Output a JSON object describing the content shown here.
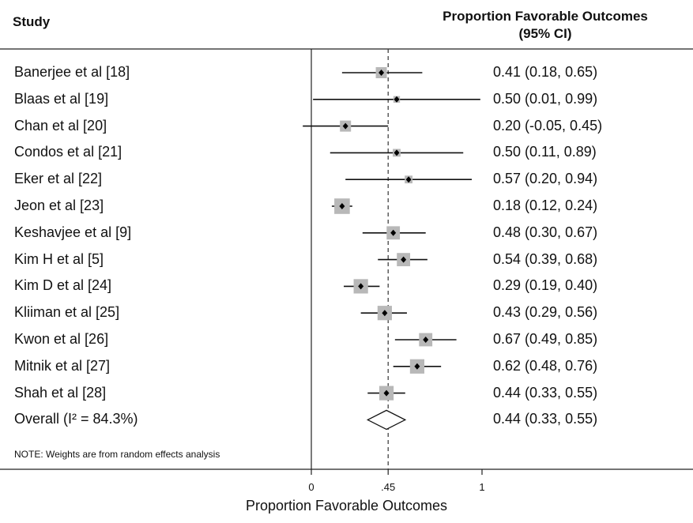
{
  "chart_data": {
    "type": "forest",
    "column_headers": {
      "study": "Study",
      "effect_line1": "Proportion Favorable Outcomes",
      "effect_line2": "(95% CI)"
    },
    "studies": [
      {
        "label": "Banerjee et al [18]",
        "est": 0.41,
        "lo": 0.18,
        "hi": 0.65,
        "ci_text": "0.41 (0.18, 0.65)",
        "weight": 1.0
      },
      {
        "label": "Blaas et al [19]",
        "est": 0.5,
        "lo": 0.01,
        "hi": 0.99,
        "ci_text": "0.50 (0.01, 0.99)",
        "weight": 0.6
      },
      {
        "label": "Chan et al [20]",
        "est": 0.2,
        "lo": -0.05,
        "hi": 0.45,
        "ci_text": "0.20 (-0.05, 0.45)",
        "weight": 1.0
      },
      {
        "label": "Condos et al [21]",
        "est": 0.5,
        "lo": 0.11,
        "hi": 0.89,
        "ci_text": "0.50 (0.11, 0.89)",
        "weight": 0.7
      },
      {
        "label": "Eker et al [22]",
        "est": 0.57,
        "lo": 0.2,
        "hi": 0.94,
        "ci_text": "0.57 (0.20, 0.94)",
        "weight": 0.7
      },
      {
        "label": "Jeon et al [23]",
        "est": 0.18,
        "lo": 0.12,
        "hi": 0.24,
        "ci_text": "0.18 (0.12, 0.24)",
        "weight": 1.4
      },
      {
        "label": "Keshavjee et al [9]",
        "est": 0.48,
        "lo": 0.3,
        "hi": 0.67,
        "ci_text": "0.48 (0.30, 0.67)",
        "weight": 1.2
      },
      {
        "label": "Kim H et al [5]",
        "est": 0.54,
        "lo": 0.39,
        "hi": 0.68,
        "ci_text": "0.54 (0.39, 0.68)",
        "weight": 1.2
      },
      {
        "label": "Kim D et al [24]",
        "est": 0.29,
        "lo": 0.19,
        "hi": 0.4,
        "ci_text": "0.29 (0.19, 0.40)",
        "weight": 1.3
      },
      {
        "label": "Kliiman et al [25]",
        "est": 0.43,
        "lo": 0.29,
        "hi": 0.56,
        "ci_text": "0.43 (0.29, 0.56)",
        "weight": 1.3
      },
      {
        "label": "Kwon et al [26]",
        "est": 0.67,
        "lo": 0.49,
        "hi": 0.85,
        "ci_text": "0.67 (0.49, 0.85)",
        "weight": 1.2
      },
      {
        "label": "Mitnik et al [27]",
        "est": 0.62,
        "lo": 0.48,
        "hi": 0.76,
        "ci_text": "0.62 (0.48, 0.76)",
        "weight": 1.3
      },
      {
        "label": "Shah et al [28]",
        "est": 0.44,
        "lo": 0.33,
        "hi": 0.55,
        "ci_text": "0.44 (0.33, 0.55)",
        "weight": 1.3
      }
    ],
    "overall": {
      "label": "Overall (I² = 84.3%)",
      "est": 0.44,
      "lo": 0.33,
      "hi": 0.55,
      "ci_text": "0.44 (0.33, 0.55)"
    },
    "note": "NOTE: Weights are from random effects analysis",
    "reference_line": 0.45,
    "null_line": 0,
    "x_ticks": [
      {
        "value": 0,
        "label": "0"
      },
      {
        "value": 0.45,
        "label": ".45"
      },
      {
        "value": 1,
        "label": "1"
      }
    ],
    "xlabel": "Proportion Favorable Outcomes",
    "xlim": [
      -0.05,
      1.0
    ]
  }
}
